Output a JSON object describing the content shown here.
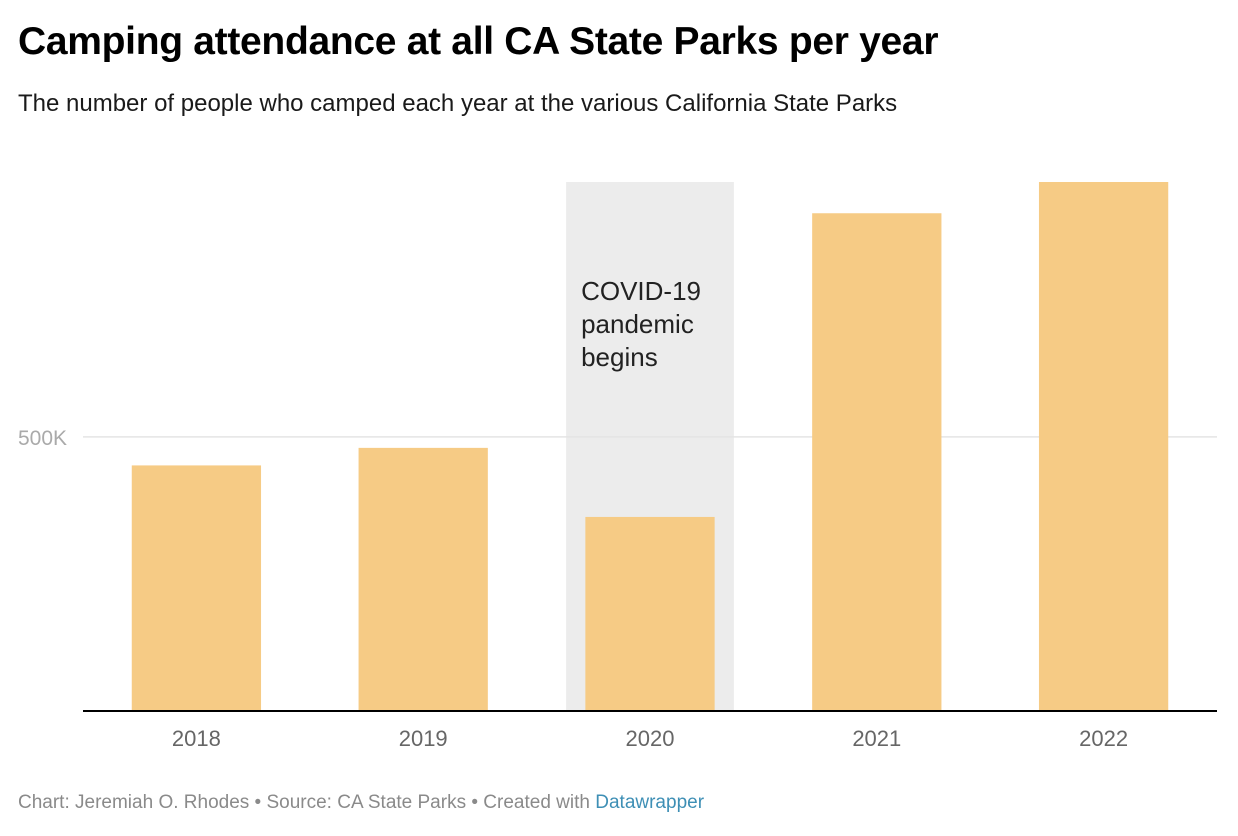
{
  "chart_data": {
    "type": "bar",
    "title": "Camping attendance at all CA State Parks per year",
    "subtitle": "The number of people who camped each year at the various California State Parks",
    "categories": [
      "2018",
      "2019",
      "2020",
      "2021",
      "2022"
    ],
    "values": [
      448000,
      480000,
      354000,
      908000,
      965000
    ],
    "ylim": [
      0,
      965000
    ],
    "yticks": [
      {
        "value": 500000,
        "label": "500K"
      }
    ],
    "grid": true,
    "colors": {
      "bar": "#f6cb85",
      "highlight": "#ececec",
      "axis": "#000000",
      "grid": "#e4e4e4"
    },
    "annotation": {
      "category": "2020",
      "lines": [
        "COVID-19",
        "pandemic",
        "begins"
      ]
    }
  },
  "footer": {
    "chart_credit": "Chart: Jeremiah O. Rhodes",
    "separator": " • ",
    "source": "Source: CA State Parks",
    "created_with": "Created with ",
    "tool": "Datawrapper"
  }
}
